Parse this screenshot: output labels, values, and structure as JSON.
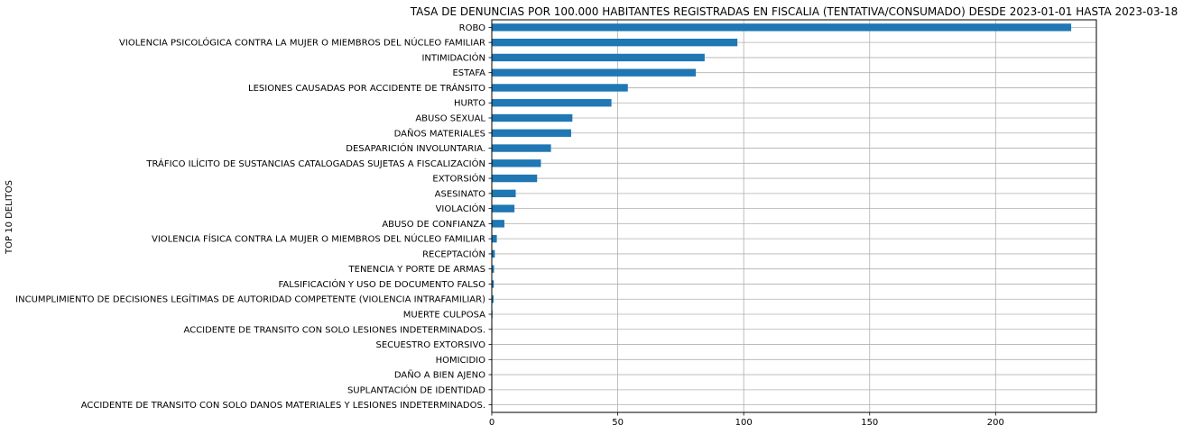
{
  "chart_data": {
    "type": "bar",
    "orientation": "horizontal",
    "title": "TASA DE DENUNCIAS POR 100.000 HABITANTES REGISTRADAS EN FISCALIA (TENTATIVA/CONSUMADO) DESDE 2023-01-01 HASTA 2023-03-18",
    "xlabel": "",
    "ylabel": "TOP 10 DELITOS",
    "xlim": [
      0,
      240
    ],
    "xticks": [
      0,
      50,
      100,
      150,
      200
    ],
    "grid": true,
    "bar_color": "#1f77b4",
    "categories": [
      "ROBO",
      "VIOLENCIA PSICOLÓGICA CONTRA LA MUJER O MIEMBROS DEL NÚCLEO FAMILIAR",
      "INTIMIDACIÓN",
      "ESTAFA",
      "LESIONES CAUSADAS POR ACCIDENTE DE TRÁNSITO",
      "HURTO",
      "ABUSO SEXUAL",
      "DAÑOS MATERIALES",
      "DESAPARICIÓN INVOLUNTARIA.",
      "TRÁFICO ILÍCITO DE SUSTANCIAS CATALOGADAS SUJETAS A FISCALIZACIÓN",
      "EXTORSIÓN",
      "ASESINATO",
      "VIOLACIÓN",
      "ABUSO DE CONFIANZA",
      "VIOLENCIA FÍSICA CONTRA LA MUJER O MIEMBROS DEL NÚCLEO FAMILIAR",
      "RECEPTACIÓN",
      "TENENCIA Y PORTE DE ARMAS",
      "FALSIFICACIÓN Y USO DE DOCUMENTO FALSO",
      "INCUMPLIMIENTO DE DECISIONES LEGÍTIMAS DE AUTORIDAD COMPETENTE (VIOLENCIA INTRAFAMILIAR)",
      "MUERTE CULPOSA",
      "ACCIDENTE DE TRANSITO CON SOLO LESIONES INDETERMINADOS.",
      "SECUESTRO EXTORSIVO",
      "HOMICIDIO",
      "DAÑO A BIEN AJENO",
      "SUPLANTACIÓN DE IDENTIDAD",
      "ACCIDENTE DE TRANSITO CON SOLO DANOS MATERIALES Y LESIONES INDETERMINADOS."
    ],
    "values": [
      230,
      97.5,
      84.5,
      81,
      54,
      47.5,
      32,
      31.5,
      23.5,
      19.5,
      18,
      9.5,
      9,
      5,
      2,
      1.2,
      0.9,
      0.8,
      0.7,
      0.3,
      0.2,
      0.15,
      0.1,
      0.1,
      0.1,
      0.05
    ]
  }
}
